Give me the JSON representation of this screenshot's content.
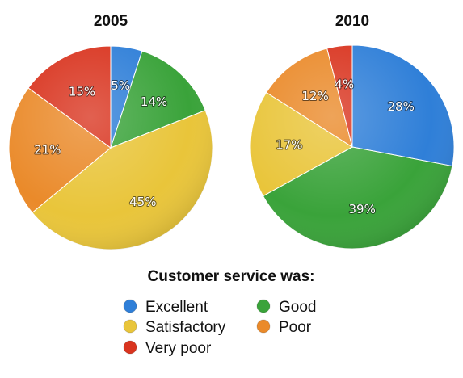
{
  "chart_data": [
    {
      "type": "pie",
      "title": "2005",
      "categories": [
        "Excellent",
        "Good",
        "Satisfactory",
        "Poor",
        "Very poor"
      ],
      "values": [
        5,
        14,
        45,
        21,
        15
      ],
      "value_labels": [
        "5%",
        "14%",
        "45%",
        "21%",
        "15%"
      ]
    },
    {
      "type": "pie",
      "title": "2010",
      "categories": [
        "Excellent",
        "Good",
        "Satisfactory",
        "Poor",
        "Very poor"
      ],
      "values": [
        28,
        39,
        17,
        12,
        4
      ],
      "value_labels": [
        "28%",
        "39%",
        "17%",
        "12%",
        "4%"
      ]
    }
  ],
  "legend": {
    "title": "Customer service was:",
    "placement": "bottom",
    "items": [
      {
        "label": "Excellent",
        "color": "#2f7fd8"
      },
      {
        "label": "Good",
        "color": "#3aa33a"
      },
      {
        "label": "Satisfactory",
        "color": "#e9c53a"
      },
      {
        "label": "Poor",
        "color": "#ea8a2a"
      },
      {
        "label": "Very poor",
        "color": "#d9341f"
      }
    ]
  },
  "slice_colors": [
    "#2f7fd8",
    "#3aa33a",
    "#e9c53a",
    "#ea8a2a",
    "#d9341f"
  ]
}
